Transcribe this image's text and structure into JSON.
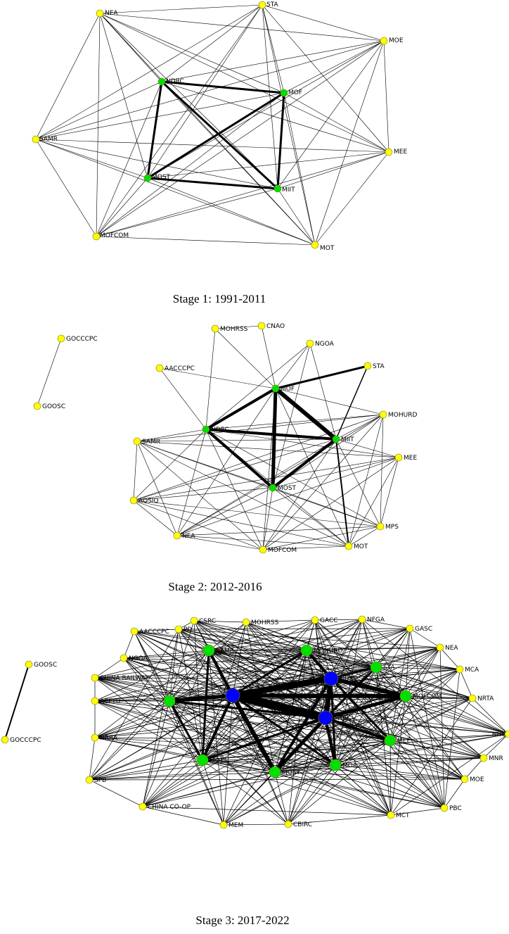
{
  "colors": {
    "yellow": "#ffff00",
    "green": "#00e000",
    "blue": "#0000ff",
    "edge": "#000000"
  },
  "panels": [
    {
      "caption": "Stage 1: 1991-2011",
      "nodes": [
        {
          "id": "NEA",
          "label": "NEA",
          "color": "yellow"
        },
        {
          "id": "STA",
          "label": "STA",
          "color": "yellow"
        },
        {
          "id": "MOE",
          "label": "MOE",
          "color": "yellow"
        },
        {
          "id": "NDRC",
          "label": "NDRC",
          "color": "green"
        },
        {
          "id": "MOF",
          "label": "MOF",
          "color": "green"
        },
        {
          "id": "SAMR",
          "label": "SAMR",
          "color": "yellow"
        },
        {
          "id": "MEE",
          "label": "MEE",
          "color": "yellow"
        },
        {
          "id": "MOST",
          "label": "MOST",
          "color": "green"
        },
        {
          "id": "MIIT",
          "label": "MIIT",
          "color": "green"
        },
        {
          "id": "MOFCOM",
          "label": "MOFCOM",
          "color": "yellow"
        },
        {
          "id": "MOT",
          "label": "MOT",
          "color": "yellow"
        }
      ],
      "heavy_edges": [
        [
          "NDRC",
          "MOF",
          3
        ],
        [
          "NDRC",
          "MOST",
          3
        ],
        [
          "NDRC",
          "MIIT",
          3
        ],
        [
          "MOF",
          "MOST",
          3
        ],
        [
          "MOF",
          "MIIT",
          3
        ],
        [
          "MOST",
          "MIIT",
          3
        ]
      ]
    },
    {
      "caption": "Stage 2: 2012-2016",
      "nodes": [
        {
          "id": "GOCCCPC",
          "label": "GOCCCPC",
          "color": "yellow"
        },
        {
          "id": "GOOSC",
          "label": "GOOSC",
          "color": "yellow"
        },
        {
          "id": "MOHRSS",
          "label": "MOHRSS",
          "color": "yellow"
        },
        {
          "id": "CNAO",
          "label": "CNAO",
          "color": "yellow"
        },
        {
          "id": "NGOA",
          "label": "NGOA",
          "color": "yellow"
        },
        {
          "id": "AACCCPC",
          "label": "AACCCPC",
          "color": "yellow"
        },
        {
          "id": "STA",
          "label": "STA",
          "color": "yellow"
        },
        {
          "id": "MOF",
          "label": "MOF",
          "color": "green"
        },
        {
          "id": "MOHURD",
          "label": "MOHURD",
          "color": "yellow"
        },
        {
          "id": "NDRC",
          "label": "NDRC",
          "color": "green"
        },
        {
          "id": "SAMR",
          "label": "SAMR",
          "color": "yellow"
        },
        {
          "id": "MIIT",
          "label": "MIIT",
          "color": "green"
        },
        {
          "id": "MEE",
          "label": "MEE",
          "color": "yellow"
        },
        {
          "id": "MOST",
          "label": "MOST",
          "color": "green"
        },
        {
          "id": "AQSIQ",
          "label": "AQSIQ",
          "color": "yellow"
        },
        {
          "id": "MPS",
          "label": "MPS",
          "color": "yellow"
        },
        {
          "id": "NEA",
          "label": "NEA",
          "color": "yellow"
        },
        {
          "id": "MOFCOM",
          "label": "MOFCOM",
          "color": "yellow"
        },
        {
          "id": "MOT",
          "label": "MOT",
          "color": "yellow"
        }
      ],
      "heavy_edges": [
        [
          "MOF",
          "NDRC",
          4
        ],
        [
          "MOF",
          "MIIT",
          6
        ],
        [
          "MOF",
          "MOST",
          5
        ],
        [
          "MOF",
          "STA",
          3
        ],
        [
          "NDRC",
          "MIIT",
          4
        ],
        [
          "NDRC",
          "MOST",
          4
        ],
        [
          "MIIT",
          "MOST",
          4
        ],
        [
          "MIIT",
          "STA",
          1.5
        ],
        [
          "MIIT",
          "MOT",
          2
        ]
      ]
    },
    {
      "caption": "Stage 3: 2017-2022",
      "nodes": [
        {
          "id": "PD",
          "label": "PD",
          "color": "yellow"
        },
        {
          "id": "CSRC",
          "label": "CSRC",
          "color": "yellow"
        },
        {
          "id": "MOHRSS",
          "label": "MOHRSS",
          "color": "yellow"
        },
        {
          "id": "GACC",
          "label": "GACC",
          "color": "yellow"
        },
        {
          "id": "NFGA",
          "label": "NFGA",
          "color": "yellow"
        },
        {
          "id": "GASC",
          "label": "GASC",
          "color": "yellow"
        },
        {
          "id": "AACCCPC",
          "label": "AACCCPC",
          "color": "yellow"
        },
        {
          "id": "NEA",
          "label": "NEA",
          "color": "yellow"
        },
        {
          "id": "GOOSC",
          "label": "GOOSC",
          "color": "yellow"
        },
        {
          "id": "NGOA",
          "label": "NGOA",
          "color": "yellow"
        },
        {
          "id": "MOHURD",
          "label": "MOHURD",
          "color": "green"
        },
        {
          "id": "MCA",
          "label": "MCA",
          "color": "yellow"
        },
        {
          "id": "SAMR",
          "label": "SAMR",
          "color": "green"
        },
        {
          "id": "STA",
          "label": "STA",
          "color": "green"
        },
        {
          "id": "NRTA",
          "label": "NRTA",
          "color": "yellow"
        },
        {
          "id": "CHINA RAILWAY",
          "label": "CHINA RAILWAY",
          "color": "yellow"
        },
        {
          "id": "NDRC",
          "label": "NDRC",
          "color": "blue"
        },
        {
          "id": "MIIT",
          "label": "MIIT",
          "color": "blue"
        },
        {
          "id": "MPS",
          "label": "MPS",
          "color": "green"
        },
        {
          "id": "MOFCOM",
          "label": "MOFCOM",
          "color": "green"
        },
        {
          "id": "NHC",
          "label": "NHC",
          "color": "yellow"
        },
        {
          "id": "ACFTU",
          "label": "ACFTU",
          "color": "yellow"
        },
        {
          "id": "GOCCCPC",
          "label": "GOCCCPC",
          "color": "yellow"
        },
        {
          "id": "MOF",
          "label": "MOF",
          "color": "blue"
        },
        {
          "id": "NRRA",
          "label": "NRRA",
          "color": "yellow"
        },
        {
          "id": "MNR",
          "label": "MNR",
          "color": "yellow"
        },
        {
          "id": "MEE",
          "label": "MEE",
          "color": "green"
        },
        {
          "id": "MOT",
          "label": "MOT",
          "color": "green"
        },
        {
          "id": "MOE",
          "label": "MOE",
          "color": "yellow"
        },
        {
          "id": "SPB",
          "label": "SPB",
          "color": "yellow"
        },
        {
          "id": "MOA",
          "label": "MOA",
          "color": "green"
        },
        {
          "id": "MOST",
          "label": "MOST",
          "color": "green"
        },
        {
          "id": "PBC",
          "label": "PBC",
          "color": "yellow"
        },
        {
          "id": "CHINA CO-OP",
          "label": "CHINA CO-OP",
          "color": "yellow"
        },
        {
          "id": "MCT",
          "label": "MCT",
          "color": "yellow"
        },
        {
          "id": "MEM",
          "label": "MEM",
          "color": "yellow"
        },
        {
          "id": "CBIRC",
          "label": "CBIRC",
          "color": "yellow"
        }
      ],
      "heavy_edges": [
        [
          "MIIT",
          "MOF",
          12
        ],
        [
          "MIIT",
          "NDRC",
          9
        ],
        [
          "NDRC",
          "MOF",
          7
        ],
        [
          "MIIT",
          "MOFCOM",
          6
        ],
        [
          "NDRC",
          "MOFCOM",
          6
        ],
        [
          "MOF",
          "MOFCOM",
          5
        ],
        [
          "MIIT",
          "MOST",
          6
        ],
        [
          "MIIT",
          "MOT",
          4
        ],
        [
          "MIIT",
          "MPS",
          5
        ],
        [
          "MOF",
          "MOST",
          5
        ],
        [
          "NDRC",
          "MOST",
          4
        ],
        [
          "MOF",
          "MOA",
          4
        ],
        [
          "NDRC",
          "MOHURD",
          4
        ],
        [
          "MOF",
          "MEE",
          4
        ],
        [
          "MIIT",
          "SAMR",
          4
        ],
        [
          "NDRC",
          "STA",
          3
        ],
        [
          "MOF",
          "STA",
          3
        ],
        [
          "MOHURD",
          "MIIT",
          3
        ],
        [
          "MOF",
          "MOT",
          3
        ],
        [
          "NDRC",
          "MEE",
          3
        ],
        [
          "MPS",
          "MOT",
          3
        ],
        [
          "SAMR",
          "MOT",
          3
        ],
        [
          "MIIT",
          "MOA",
          3
        ],
        [
          "MOF",
          "MPS",
          3
        ],
        [
          "NDRC",
          "MOA",
          3
        ],
        [
          "GOOSC",
          "GOCCCPC",
          2
        ]
      ]
    }
  ]
}
